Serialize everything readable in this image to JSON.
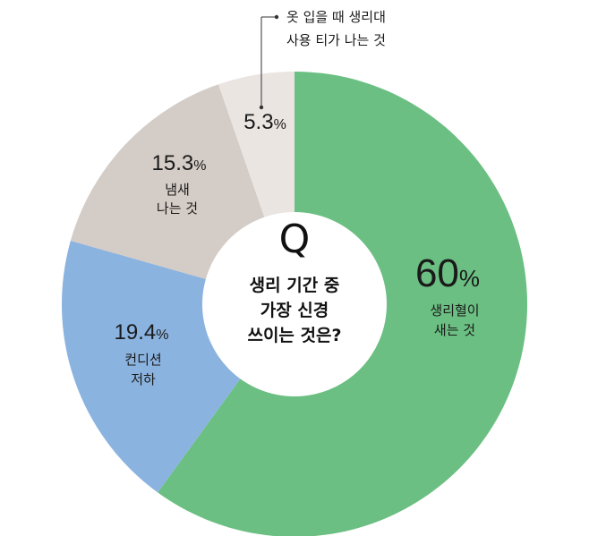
{
  "chart_data": {
    "type": "pie",
    "donut": true,
    "center": {
      "q": "Q",
      "lines": [
        "생리 기간 중",
        "가장 신경",
        "쓰이는 것은?"
      ]
    },
    "slices": [
      {
        "value": 60,
        "percent_label": "60",
        "label_lines": [
          "생리혈이",
          "새는 것"
        ],
        "color": "#6bbf82"
      },
      {
        "value": 19.4,
        "percent_label": "19.4",
        "label_lines": [
          "컨디션",
          "저하"
        ],
        "color": "#8bb3e0"
      },
      {
        "value": 15.3,
        "percent_label": "15.3",
        "label_lines": [
          "냄새",
          "나는 것"
        ],
        "color": "#d4ccc6"
      },
      {
        "value": 5.3,
        "percent_label": "5.3",
        "label_lines": [
          "옷 입을 때 생리대",
          "사용 티가 나는 것"
        ],
        "color": "#ebe5e2"
      }
    ],
    "percent_sign": "%"
  }
}
